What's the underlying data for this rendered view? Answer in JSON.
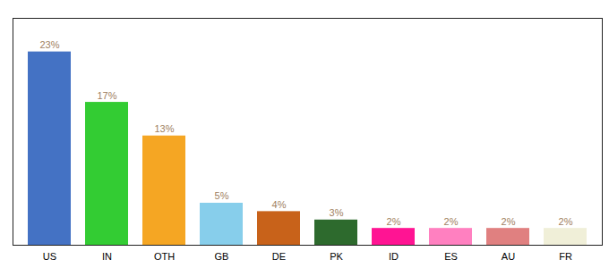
{
  "chart_data": {
    "type": "bar",
    "categories": [
      "US",
      "IN",
      "OTH",
      "GB",
      "DE",
      "PK",
      "ID",
      "ES",
      "AU",
      "FR"
    ],
    "values": [
      23,
      17,
      13,
      5,
      4,
      3,
      2,
      2,
      2,
      2
    ],
    "value_labels": [
      "23%",
      "17%",
      "13%",
      "5%",
      "4%",
      "3%",
      "2%",
      "2%",
      "2%",
      "2%"
    ],
    "colors": [
      "#4472c4",
      "#33cc33",
      "#f5a623",
      "#87ceeb",
      "#c8621a",
      "#2d6a2d",
      "#ff1493",
      "#ff80c0",
      "#e08080",
      "#f0efd8"
    ],
    "ylim": [
      0,
      27
    ],
    "grid": false,
    "data_labels": true,
    "tick_labels": "x"
  }
}
